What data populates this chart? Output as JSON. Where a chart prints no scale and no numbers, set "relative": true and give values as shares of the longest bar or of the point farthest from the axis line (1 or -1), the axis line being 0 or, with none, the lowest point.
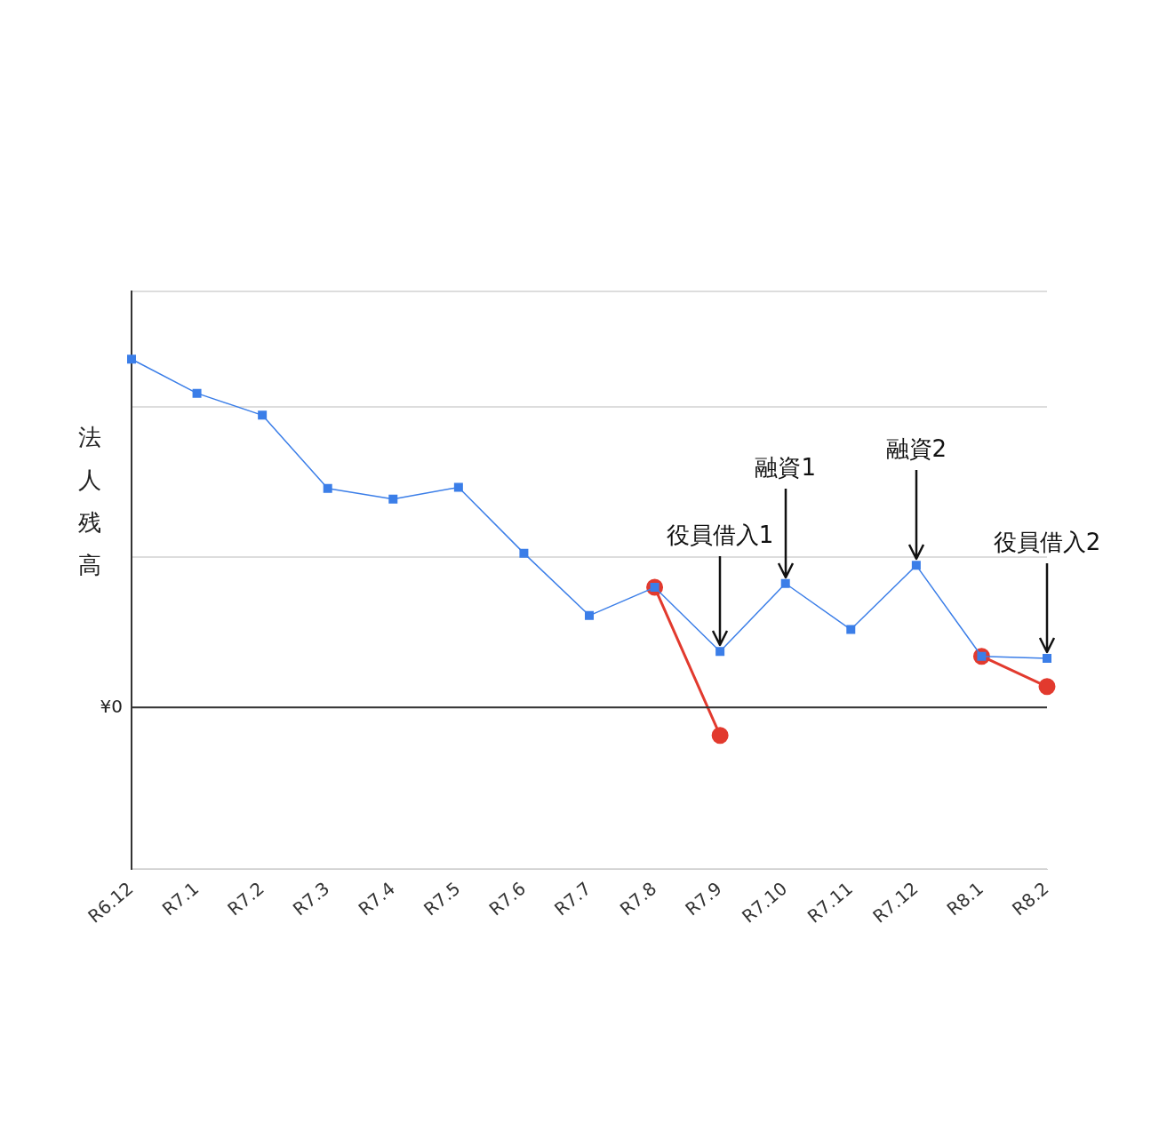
{
  "chart_data": {
    "type": "line",
    "ylabel": "法人残高",
    "relative": true,
    "grid": "y",
    "legend": false,
    "categories": [
      "R6.12",
      "R7.1",
      "R7.2",
      "R7.3",
      "R7.4",
      "R7.5",
      "R7.6",
      "R7.7",
      "R7.8",
      "R7.9",
      "R7.10",
      "R7.11",
      "R7.12",
      "R8.1",
      "R8.2"
    ],
    "series": [
      {
        "color": "#3b7ee8",
        "marker": "square",
        "values": [
          1,
          0.902,
          0.839,
          0.629,
          0.598,
          0.632,
          0.443,
          0.264,
          0.345,
          0.161,
          0.356,
          0.224,
          0.408,
          0.147,
          0.141
        ]
      },
      {
        "color": "#e23a2e",
        "marker": "circle",
        "values": [
          null,
          null,
          null,
          null,
          null,
          null,
          null,
          null,
          0.345,
          -0.08,
          null,
          null,
          null,
          0.147,
          0.06
        ]
      }
    ],
    "ref_lines": [
      {
        "axis": "y",
        "value": 0,
        "label": "¥0",
        "color": "#333333"
      }
    ],
    "annotations": [
      {
        "text": "役員借入1",
        "x": "R7.9",
        "y": 0.161
      },
      {
        "text": "融資1",
        "x": "R7.10",
        "y": 0.356
      },
      {
        "text": "融資2",
        "x": "R7.12",
        "y": 0.408
      },
      {
        "text": "役員借入2",
        "x": "R8.2",
        "y": 0.141
      }
    ]
  }
}
